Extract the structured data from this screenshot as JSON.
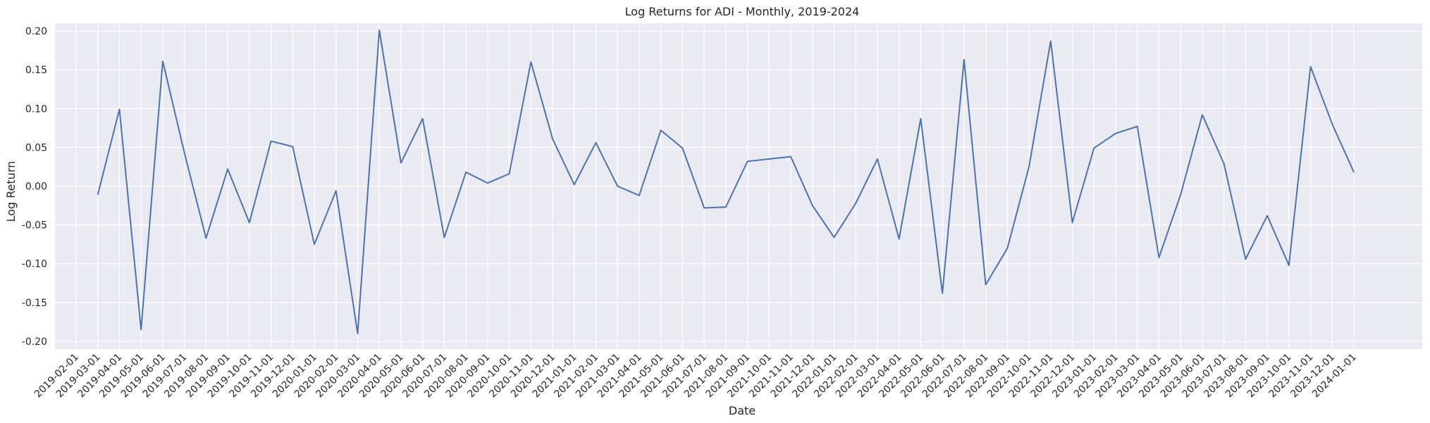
{
  "chart_data": {
    "type": "line",
    "title": "Log Returns for ADI - Monthly, 2019-2024",
    "xlabel": "Date",
    "ylabel": "Log Return",
    "ylim": [
      -0.21,
      0.21
    ],
    "yticks": [
      "-0.20",
      "-0.15",
      "-0.10",
      "-0.05",
      "0.00",
      "0.05",
      "0.10",
      "0.15",
      "0.20"
    ],
    "ytick_values": [
      -0.2,
      -0.15,
      -0.1,
      -0.05,
      0.0,
      0.05,
      0.1,
      0.15,
      0.2
    ],
    "grid": true,
    "background": "#eaeaf2",
    "grid_color": "#ffffff",
    "line_color": "#4c72b0",
    "x": [
      "2019-02-01",
      "2019-03-01",
      "2019-04-01",
      "2019-05-01",
      "2019-06-01",
      "2019-07-01",
      "2019-08-01",
      "2019-09-01",
      "2019-10-01",
      "2019-11-01",
      "2019-12-01",
      "2020-01-01",
      "2020-02-01",
      "2020-03-01",
      "2020-04-01",
      "2020-05-01",
      "2020-06-01",
      "2020-07-01",
      "2020-08-01",
      "2020-09-01",
      "2020-10-01",
      "2020-11-01",
      "2020-12-01",
      "2021-01-01",
      "2021-02-01",
      "2021-03-01",
      "2021-04-01",
      "2021-05-01",
      "2021-06-01",
      "2021-07-01",
      "2021-08-01",
      "2021-09-01",
      "2021-10-01",
      "2021-11-01",
      "2021-12-01",
      "2022-01-01",
      "2022-02-01",
      "2022-03-01",
      "2022-04-01",
      "2022-05-01",
      "2022-06-01",
      "2022-07-01",
      "2022-08-01",
      "2022-09-01",
      "2022-10-01",
      "2022-11-01",
      "2022-12-01",
      "2023-01-01",
      "2023-02-01",
      "2023-03-01",
      "2023-04-01",
      "2023-05-01",
      "2023-06-01",
      "2023-07-01",
      "2023-08-01",
      "2023-09-01",
      "2023-10-01",
      "2023-11-01",
      "2023-12-01",
      "2024-01-01"
    ],
    "series": [
      {
        "values": [
          null,
          -0.011,
          0.099,
          -0.185,
          0.161,
          0.043,
          -0.067,
          0.022,
          -0.047,
          0.058,
          0.051,
          -0.075,
          -0.006,
          -0.19,
          0.201,
          0.03,
          0.087,
          -0.066,
          0.018,
          0.004,
          0.016,
          0.16,
          0.061,
          0.002,
          0.056,
          0.0,
          -0.012,
          0.072,
          0.049,
          -0.028,
          -0.027,
          0.032,
          0.035,
          0.038,
          -0.025,
          -0.066,
          -0.022,
          0.035,
          -0.068,
          0.087,
          -0.138,
          0.163,
          -0.127,
          -0.08,
          0.025,
          0.187,
          -0.047,
          0.049,
          0.068,
          0.077,
          -0.092,
          -0.011,
          0.092,
          0.029,
          -0.094,
          -0.038,
          -0.102,
          0.154,
          0.08,
          0.018
        ]
      }
    ]
  }
}
